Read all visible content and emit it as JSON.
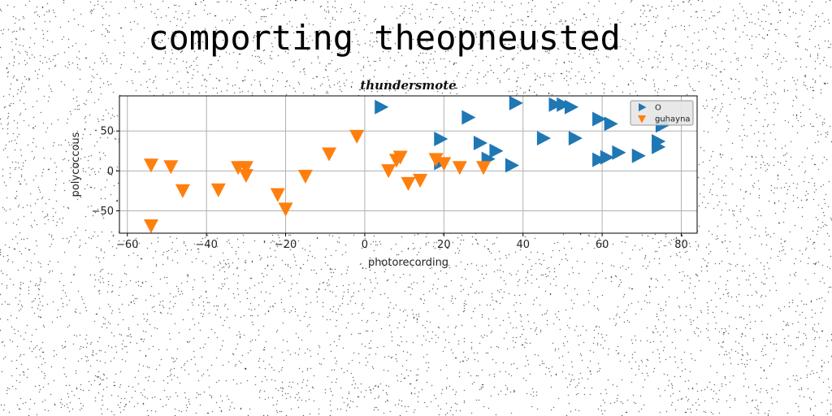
{
  "page_title": "comporting theopneusted",
  "chart_data": {
    "type": "scatter",
    "title": "thundersmote",
    "xlabel": "photorecording",
    "ylabel": "polycoccous",
    "xlim": [
      -62,
      84
    ],
    "ylim": [
      -78,
      94
    ],
    "xticks": [
      -60,
      -40,
      -20,
      0,
      20,
      40,
      60,
      80
    ],
    "yticks": [
      -50,
      0,
      50
    ],
    "grid": true,
    "legend_position": "top-right",
    "series": [
      {
        "name": "O",
        "marker": "triangle-right",
        "color": "#1f77b4",
        "points": [
          [
            4,
            80
          ],
          [
            19,
            40
          ],
          [
            19,
            10
          ],
          [
            26,
            67
          ],
          [
            29,
            35
          ],
          [
            31,
            15
          ],
          [
            33,
            25
          ],
          [
            37,
            7
          ],
          [
            38,
            85
          ],
          [
            45,
            41
          ],
          [
            48,
            83
          ],
          [
            50,
            83
          ],
          [
            52,
            80
          ],
          [
            53,
            41
          ],
          [
            59,
            65
          ],
          [
            59,
            14
          ],
          [
            61,
            17
          ],
          [
            62,
            59
          ],
          [
            64,
            23
          ],
          [
            69,
            19
          ],
          [
            74,
            30
          ],
          [
            74,
            37
          ],
          [
            75,
            57
          ],
          [
            75,
            60
          ]
        ]
      },
      {
        "name": "guhayna",
        "marker": "triangle-down",
        "color": "#ff7f0e",
        "points": [
          [
            -54,
            8
          ],
          [
            -54,
            -68
          ],
          [
            -49,
            6
          ],
          [
            -46,
            -24
          ],
          [
            -37,
            -23
          ],
          [
            -32,
            5
          ],
          [
            -30,
            5
          ],
          [
            -30,
            -5
          ],
          [
            -22,
            -29
          ],
          [
            -20,
            -47
          ],
          [
            -15,
            -6
          ],
          [
            -9,
            22
          ],
          [
            -2,
            44
          ],
          [
            6,
            1
          ],
          [
            8,
            14
          ],
          [
            9,
            18
          ],
          [
            11,
            -15
          ],
          [
            14,
            -11
          ],
          [
            18,
            15
          ],
          [
            20,
            10
          ],
          [
            24,
            5
          ],
          [
            30,
            5
          ]
        ]
      }
    ]
  }
}
